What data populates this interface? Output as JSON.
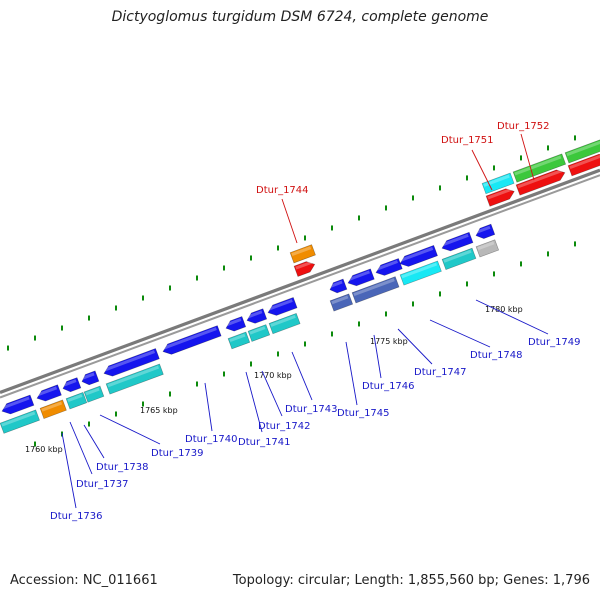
{
  "title": "Dictyoglomus turgidum DSM 6724, complete genome",
  "footer": {
    "accession": "Accession: NC_011661",
    "summary": "Topology: circular; Length: 1,855,560 bp; Genes: 1,796"
  },
  "colors": {
    "cds_blue": "#1515ee",
    "rna_orange": "#f08c00",
    "red": "#ee1010",
    "green": "#3cc83c",
    "cyan": "#18e8f4",
    "teal": "#20c8c8",
    "slate": "#4a66b8",
    "gray": "#b8b8b8",
    "backbone": "#7a7a7a",
    "tick": "#0b8a0b",
    "label_blue": "#1818c8",
    "label_red": "#d01010"
  },
  "scale_labels": [
    "1760 kbp",
    "1765 kbp",
    "1770 kbp",
    "1775 kbp",
    "1780 kbp"
  ],
  "gene_labels": [
    {
      "text": "Dtur_1736",
      "color": "blue"
    },
    {
      "text": "Dtur_1737",
      "color": "blue"
    },
    {
      "text": "Dtur_1738",
      "color": "blue"
    },
    {
      "text": "Dtur_1739",
      "color": "blue"
    },
    {
      "text": "Dtur_1740",
      "color": "blue"
    },
    {
      "text": "Dtur_1741",
      "color": "blue"
    },
    {
      "text": "Dtur_1742",
      "color": "blue"
    },
    {
      "text": "Dtur_1743",
      "color": "blue"
    },
    {
      "text": "Dtur_1744",
      "color": "red"
    },
    {
      "text": "Dtur_1745",
      "color": "blue"
    },
    {
      "text": "Dtur_1746",
      "color": "blue"
    },
    {
      "text": "Dtur_1747",
      "color": "blue"
    },
    {
      "text": "Dtur_1748",
      "color": "blue"
    },
    {
      "text": "Dtur_1749",
      "color": "blue"
    },
    {
      "text": "Dtur_1751",
      "color": "red"
    },
    {
      "text": "Dtur_1752",
      "color": "red"
    }
  ]
}
